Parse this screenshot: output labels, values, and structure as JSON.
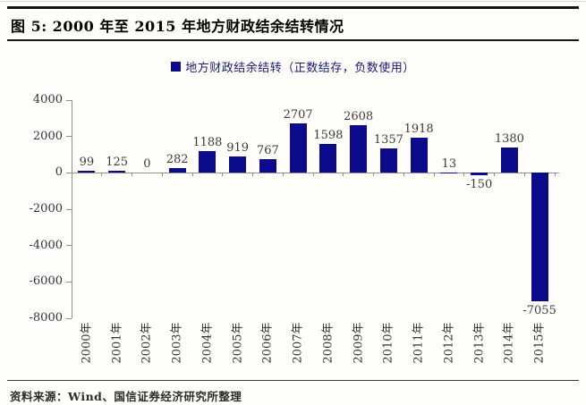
{
  "figure": {
    "title": "图 5: 2000 年至 2015 年地方财政结余结转情况",
    "source": "资料来源：Wind、国信证券经济研究所整理"
  },
  "chart_data": {
    "type": "bar",
    "title": "图 5: 2000 年至 2015 年地方财政结余结转情况",
    "legend": "地方财政结余结转（正数结存，负数使用）",
    "legend_position": "top-center",
    "categories": [
      "2000年",
      "2001年",
      "2002年",
      "2003年",
      "2004年",
      "2005年",
      "2006年",
      "2007年",
      "2008年",
      "2009年",
      "2010年",
      "2011年",
      "2012年",
      "2013年",
      "2014年",
      "2015年"
    ],
    "values": [
      99,
      125,
      0,
      282,
      1188,
      919,
      767,
      2707,
      1598,
      2608,
      1357,
      1918,
      13,
      -150,
      1380,
      -7055
    ],
    "ylim": [
      -8000,
      4000
    ],
    "yticks": [
      4000,
      2000,
      0,
      -2000,
      -4000,
      -6000,
      -8000
    ],
    "grid": false,
    "xlabel": "",
    "ylabel": "",
    "bar_color": "#0b0b8b",
    "axis_color": "#8f8f8f",
    "value_label_color": "#3a3a3a",
    "tick_label_color": "#33333f"
  }
}
